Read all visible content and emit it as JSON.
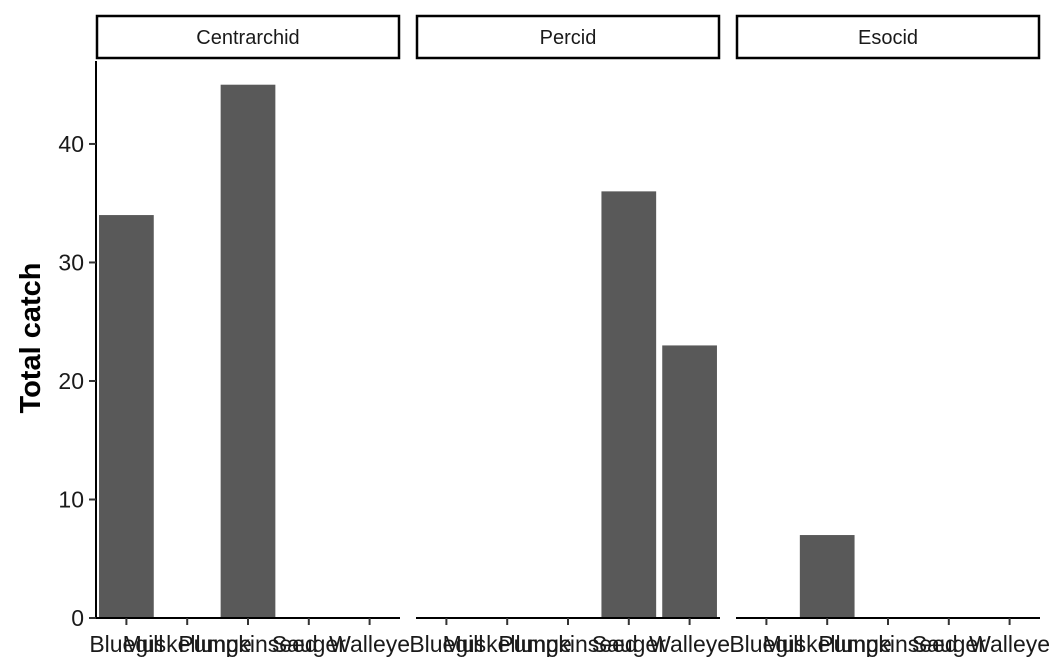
{
  "chart_data": {
    "type": "bar",
    "facet_by": "family",
    "ylabel": "Total catch",
    "xlabel": "",
    "ylim": [
      0,
      47
    ],
    "y_ticks": [
      0,
      10,
      20,
      30,
      40
    ],
    "categories": [
      "Bluegill",
      "Muskellunge",
      "Pumpkinseed",
      "Sauger",
      "Walleye"
    ],
    "bar_color": "#595959",
    "panels": [
      {
        "strip": "Centrarchid",
        "values": [
          34,
          0,
          45,
          0,
          0
        ]
      },
      {
        "strip": "Percid",
        "values": [
          0,
          0,
          0,
          36,
          23
        ]
      },
      {
        "strip": "Esocid",
        "values": [
          0,
          7,
          0,
          0,
          0
        ]
      }
    ]
  }
}
